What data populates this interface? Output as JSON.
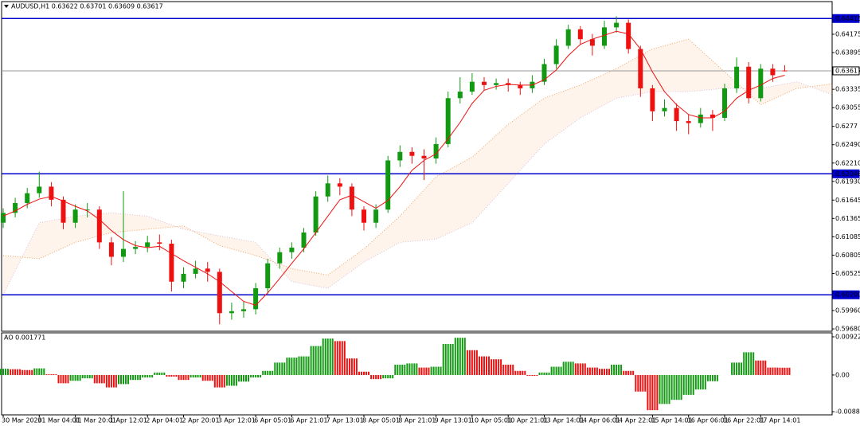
{
  "chart_data": [
    {
      "type": "candlestick",
      "title": "AUDUSD,H1  0.63622 0.63701 0.63609 0.63617",
      "categories": [
        "30 Mar 2020",
        null,
        null,
        "31 Mar 04:01",
        null,
        null,
        "31 Mar 20:01",
        null,
        null,
        "1 Apr 12:01",
        null,
        null,
        "2 Apr 04:01",
        null,
        null,
        "2 Apr 20:01",
        null,
        null,
        "3 Apr 12:01",
        null,
        null,
        "6 Apr 05:01",
        null,
        null,
        "6 Apr 21:01",
        null,
        null,
        "7 Apr 13:01",
        null,
        null,
        "8 Apr 05:01",
        null,
        null,
        "8 Apr 21:01",
        null,
        null,
        "9 Apr 13:01",
        null,
        null,
        "10 Apr 05:01",
        null,
        null,
        "10 Apr 21:01",
        null,
        null,
        "13 Apr 14:01",
        null,
        null,
        "14 Apr 06:01",
        null,
        null,
        "14 Apr 22:01",
        null,
        null,
        "15 Apr 14:01",
        null,
        null,
        "16 Apr 06:01",
        null,
        null,
        "16 Apr 22:01",
        null,
        null,
        "17 Apr 14:01",
        null,
        null
      ],
      "open": [
        0.613,
        0.6145,
        0.616,
        0.6175,
        0.6185,
        0.6165,
        0.613,
        0.615,
        0.615,
        0.61,
        0.6078,
        0.609,
        0.6093,
        0.61,
        0.6098,
        0.604,
        0.6052,
        0.606,
        0.6055,
        0.5992,
        0.5995,
        0.5998,
        0.603,
        0.6068,
        0.6085,
        0.6092,
        0.6115,
        0.617,
        0.619,
        0.6185,
        0.615,
        0.613,
        0.615,
        0.6225,
        0.6238,
        0.6232,
        0.6228,
        0.625,
        0.632,
        0.633,
        0.6345,
        0.634,
        0.6343,
        0.634,
        0.6335,
        0.6345,
        0.6372,
        0.64,
        0.6425,
        0.641,
        0.64,
        0.6428,
        0.6435,
        0.6395,
        0.6335,
        0.63,
        0.6305,
        0.6285,
        0.6282,
        0.6295,
        0.629,
        0.6335,
        0.6368,
        0.632,
        0.6365,
        0.63622
      ],
      "high": [
        0.6152,
        0.6168,
        0.6183,
        0.6208,
        0.6192,
        0.617,
        0.6158,
        0.616,
        0.6155,
        0.6108,
        0.6178,
        0.6102,
        0.611,
        0.6112,
        0.6104,
        0.6062,
        0.6072,
        0.607,
        0.606,
        0.6008,
        0.601,
        0.6038,
        0.6075,
        0.6092,
        0.61,
        0.6122,
        0.6178,
        0.6202,
        0.6198,
        0.619,
        0.6155,
        0.6158,
        0.6232,
        0.6248,
        0.6245,
        0.6242,
        0.626,
        0.633,
        0.6352,
        0.6358,
        0.6352,
        0.635,
        0.635,
        0.6345,
        0.6355,
        0.638,
        0.641,
        0.6432,
        0.643,
        0.6418,
        0.6438,
        0.6445,
        0.644,
        0.64,
        0.634,
        0.6318,
        0.6312,
        0.6295,
        0.6305,
        0.6302,
        0.6342,
        0.6382,
        0.6375,
        0.6372,
        0.6372,
        0.63701
      ],
      "low": [
        0.6122,
        0.6138,
        0.6152,
        0.6168,
        0.6155,
        0.612,
        0.6122,
        0.6138,
        0.609,
        0.6065,
        0.607,
        0.6082,
        0.6085,
        0.6088,
        0.6025,
        0.603,
        0.6045,
        0.604,
        0.5975,
        0.5982,
        0.5985,
        0.599,
        0.6022,
        0.606,
        0.6075,
        0.6085,
        0.611,
        0.6162,
        0.6172,
        0.614,
        0.6118,
        0.6122,
        0.6145,
        0.6215,
        0.622,
        0.6195,
        0.622,
        0.6245,
        0.6312,
        0.6325,
        0.6332,
        0.6333,
        0.633,
        0.6325,
        0.6328,
        0.634,
        0.6365,
        0.6395,
        0.6402,
        0.6385,
        0.6395,
        0.642,
        0.6388,
        0.6322,
        0.6285,
        0.6292,
        0.627,
        0.6265,
        0.6275,
        0.627,
        0.6285,
        0.6328,
        0.6312,
        0.6315,
        0.6345,
        0.63609
      ],
      "close": [
        0.6145,
        0.616,
        0.6175,
        0.6185,
        0.6165,
        0.613,
        0.615,
        0.615,
        0.61,
        0.6078,
        0.609,
        0.6093,
        0.61,
        0.6098,
        0.604,
        0.6052,
        0.606,
        0.6055,
        0.5992,
        0.5995,
        0.5998,
        0.603,
        0.6068,
        0.6085,
        0.6092,
        0.6115,
        0.617,
        0.619,
        0.6185,
        0.615,
        0.613,
        0.615,
        0.6225,
        0.6238,
        0.6232,
        0.6228,
        0.625,
        0.632,
        0.633,
        0.6345,
        0.634,
        0.6343,
        0.634,
        0.6335,
        0.6345,
        0.6372,
        0.64,
        0.6425,
        0.641,
        0.64,
        0.6428,
        0.6435,
        0.6395,
        0.6335,
        0.63,
        0.6305,
        0.6285,
        0.6282,
        0.6295,
        0.629,
        0.6335,
        0.6368,
        0.632,
        0.6365,
        0.6355,
        0.63617
      ],
      "up_color": "#119911",
      "down_color": "#ee1111",
      "moving_average": {
        "color": "#ee1111",
        "values": [
          0.614,
          0.6148,
          0.6158,
          0.6166,
          0.617,
          0.6163,
          0.6155,
          0.6148,
          0.6135,
          0.6118,
          0.6104,
          0.6095,
          0.6092,
          0.6094,
          0.6083,
          0.6072,
          0.6062,
          0.6052,
          0.604,
          0.6025,
          0.601,
          0.6004,
          0.6023,
          0.6045,
          0.6068,
          0.609,
          0.6115,
          0.614,
          0.6165,
          0.6172,
          0.6162,
          0.6152,
          0.6164,
          0.6185,
          0.621,
          0.6225,
          0.6235,
          0.6258,
          0.6283,
          0.6312,
          0.6332,
          0.6338,
          0.6341,
          0.634,
          0.634,
          0.6348,
          0.6363,
          0.6385,
          0.6402,
          0.641,
          0.6416,
          0.6422,
          0.6418,
          0.6395,
          0.636,
          0.633,
          0.631,
          0.6295,
          0.629,
          0.629,
          0.63,
          0.632,
          0.6332,
          0.634,
          0.635,
          0.6355
        ]
      },
      "cloud": {
        "x": [
          0,
          3,
          6,
          9,
          12,
          15,
          18,
          21,
          24,
          27,
          30,
          33,
          36,
          39,
          42,
          45,
          48,
          51,
          54,
          57,
          60,
          63,
          66,
          69
        ],
        "series": [
          {
            "color": "#f4a460",
            "values": [
              0.608,
              0.6075,
              0.61,
              0.6115,
              0.612,
              0.6125,
              0.6095,
              0.608,
              0.606,
              0.605,
              0.609,
              0.614,
              0.62,
              0.623,
              0.628,
              0.632,
              0.634,
              0.6365,
              0.6395,
              0.641,
              0.636,
              0.631,
              0.6335,
              0.6342
            ]
          },
          {
            "color": "#d8bfd8",
            "values": [
              0.602,
              0.613,
              0.614,
              0.6145,
              0.614,
              0.612,
              0.611,
              0.61,
              0.604,
              0.603,
              0.607,
              0.61,
              0.6105,
              0.613,
              0.619,
              0.625,
              0.629,
              0.632,
              0.633,
              0.633,
              0.6335,
              0.6335,
              0.6345,
              0.6325
            ]
          }
        ]
      },
      "levels": [
        {
          "value": 0.64415,
          "color": "#0000cc"
        },
        {
          "value": 0.62046,
          "color": "#0000cc"
        },
        {
          "value": 0.602,
          "label": "0.60200",
          "color": "#0000cc"
        },
        {
          "value": 0.63617,
          "color": "#999999"
        }
      ],
      "ylim": [
        0.59644,
        0.64649
      ],
      "yticks": [
        0.64175,
        0.63895,
        0.63335,
        0.63055,
        0.6277,
        {
          "value": 0.6249,
          "label": "0.62490"
        },
        {
          "value": 0.6221,
          "label": "0.62210"
        },
        {
          "value": 0.6193,
          "label": "0.61930"
        },
        0.61645,
        0.61365,
        0.61085,
        0.60805,
        0.60525,
        {
          "value": 0.5996,
          "label": "0.59960"
        },
        {
          "value": 0.5968,
          "label": "0.59680"
        }
      ]
    },
    {
      "type": "histogram-oscillator",
      "title": "AO 0.001771",
      "values": [
        0.0015,
        0.0014,
        0.0012,
        0.0016,
        0.0002,
        -0.002,
        -0.0014,
        -0.0008,
        -0.002,
        -0.003,
        -0.0022,
        -0.0012,
        -0.0006,
        0.0006,
        -0.0004,
        -0.0012,
        -0.0006,
        -0.0014,
        -0.003,
        -0.0026,
        -0.0016,
        -0.0006,
        0.001,
        0.003,
        0.0042,
        0.0045,
        0.007,
        0.0088,
        0.0082,
        0.004,
        0.0008,
        -0.001,
        -0.0008,
        0.0025,
        0.0028,
        0.0018,
        0.002,
        0.0075,
        0.009,
        0.006,
        0.0045,
        0.0038,
        0.0025,
        0.001,
        -0.0002,
        0.0006,
        0.002,
        0.0032,
        0.0028,
        0.0018,
        0.0015,
        0.0025,
        0.001,
        -0.004,
        -0.0085,
        -0.007,
        -0.006,
        -0.0048,
        -0.0035,
        -0.0015,
        0.0,
        0.003,
        0.0055,
        0.0035,
        0.0018,
        0.001771
      ],
      "up_color": "#119911",
      "down_color": "#ee1111",
      "ylim": [
        -0.00963,
        0.01019
      ],
      "yticks": [
        0.009229,
        {
          "value": 0,
          "label": "0.00"
        },
        -0.008861
      ]
    }
  ]
}
